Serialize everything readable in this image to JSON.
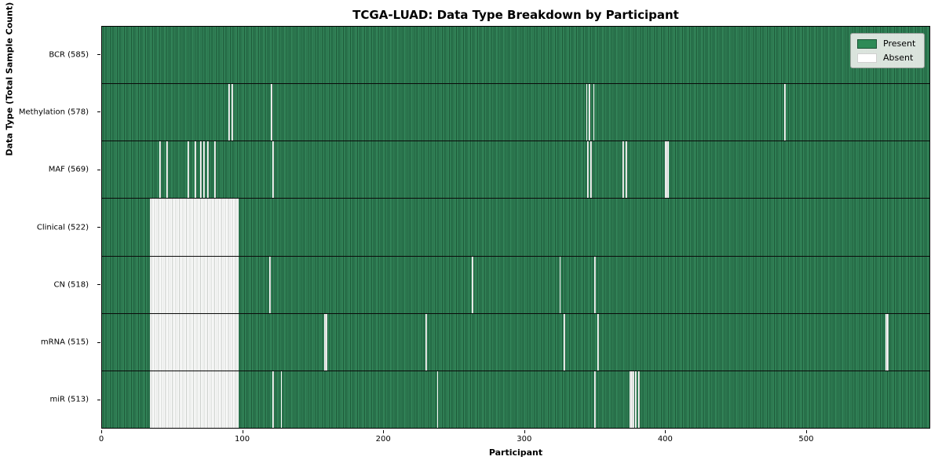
{
  "title": "TCGA-LUAD: Data Type Breakdown by Participant",
  "chart_data": {
    "type": "heatmap",
    "title": "TCGA-LUAD: Data Type Breakdown by Participant",
    "xlabel": "Participant",
    "ylabel": "Data Type (Total Sample Count)",
    "x_ticks": [
      0,
      100,
      200,
      300,
      400,
      500
    ],
    "x_range": [
      0,
      588
    ],
    "n_participants": 585,
    "grid": false,
    "legend_position": "upper right",
    "legend": [
      {
        "label": "Present",
        "color": "#2e8b57",
        "edge": "#1a5234"
      },
      {
        "label": "Absent",
        "color": "#ffffff",
        "edge": "#d0d0d0"
      }
    ],
    "colors": {
      "present": "#2e8b57",
      "present_edge": "#1c5737",
      "absent": "#ffffff",
      "absent_edge": "#c9cdc9",
      "row_separator": "#0a0a0a"
    },
    "rows": [
      {
        "name": "BCR",
        "label": "BCR (585)",
        "present_count": 585,
        "absent": []
      },
      {
        "name": "Methylation",
        "label": "Methylation (578)",
        "present_count": 578,
        "absent": [
          90,
          92,
          120,
          344,
          346,
          349,
          485
        ]
      },
      {
        "name": "MAF",
        "label": "MAF (569)",
        "present_count": 569,
        "absent": [
          41,
          46,
          61,
          66,
          70,
          72,
          75,
          80,
          121,
          345,
          347,
          370,
          372,
          400,
          401,
          402
        ]
      },
      {
        "name": "Clinical",
        "label": "Clinical (522)",
        "present_count": 522,
        "absent": [
          [
            34,
            96
          ]
        ]
      },
      {
        "name": "CN",
        "label": "CN (518)",
        "present_count": 518,
        "absent": [
          [
            34,
            96
          ],
          119,
          263,
          325,
          350
        ]
      },
      {
        "name": "mRNA",
        "label": "mRNA (515)",
        "present_count": 515,
        "absent": [
          [
            34,
            96
          ],
          158,
          159,
          230,
          328,
          352,
          557,
          558
        ]
      },
      {
        "name": "miR",
        "label": "miR (513)",
        "present_count": 513,
        "absent": [
          [
            34,
            96
          ],
          121,
          127,
          238,
          350,
          375,
          376,
          377,
          379,
          381
        ]
      }
    ]
  }
}
